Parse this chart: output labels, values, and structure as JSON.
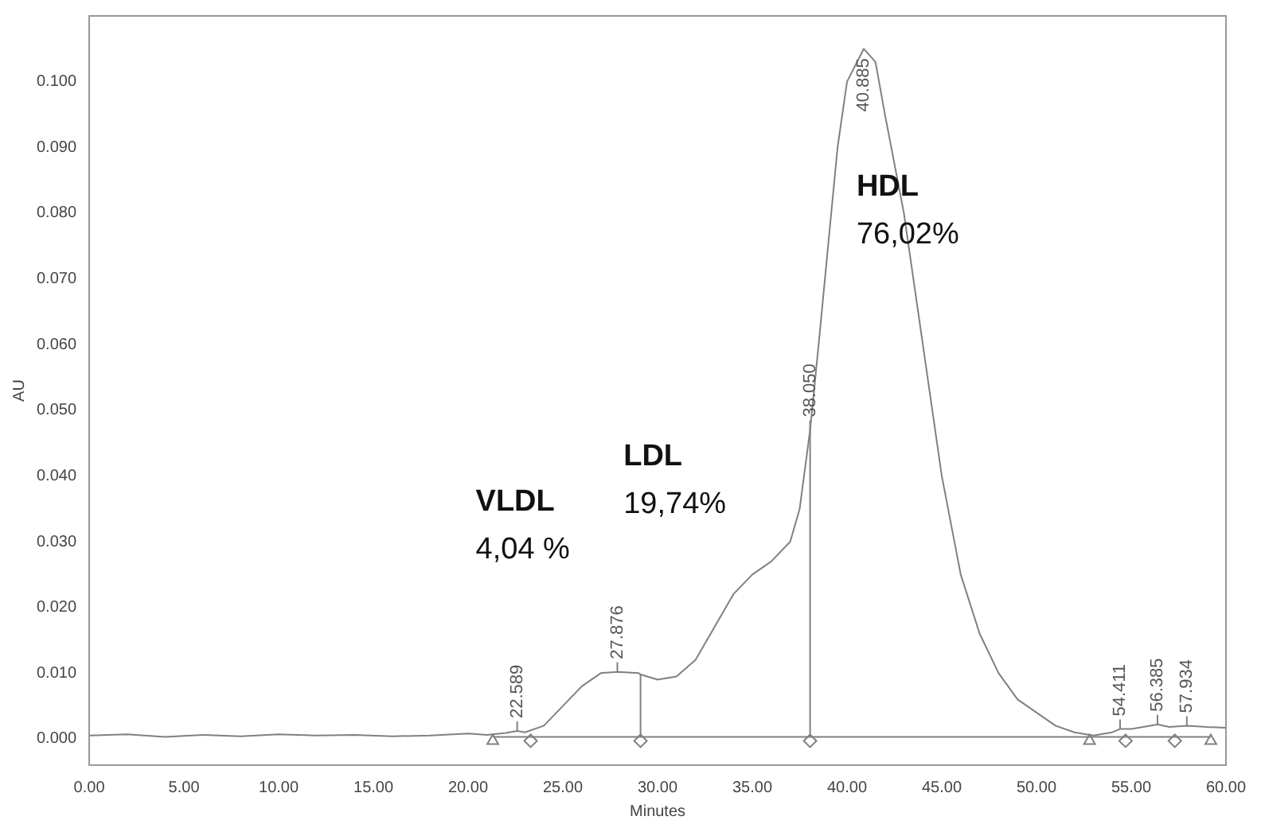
{
  "chart_data": {
    "type": "line",
    "xlabel": "Minutes",
    "ylabel": "AU",
    "xlim": [
      0,
      60
    ],
    "ylim": [
      -0.004,
      0.11
    ],
    "xticks": [
      {
        "value": 0,
        "label": "0.00"
      },
      {
        "value": 5,
        "label": "5.00"
      },
      {
        "value": 10,
        "label": "10.00"
      },
      {
        "value": 15,
        "label": "15.00"
      },
      {
        "value": 20,
        "label": "20.00"
      },
      {
        "value": 25,
        "label": "25.00"
      },
      {
        "value": 30,
        "label": "30.00"
      },
      {
        "value": 35,
        "label": "35.00"
      },
      {
        "value": 40,
        "label": "40.00"
      },
      {
        "value": 45,
        "label": "45.00"
      },
      {
        "value": 50,
        "label": "50.00"
      },
      {
        "value": 55,
        "label": "55.00"
      },
      {
        "value": 60,
        "label": "60.00"
      }
    ],
    "yticks": [
      {
        "value": 0,
        "label": "0.000"
      },
      {
        "value": 0.01,
        "label": "0.010"
      },
      {
        "value": 0.02,
        "label": "0.020"
      },
      {
        "value": 0.03,
        "label": "0.030"
      },
      {
        "value": 0.04,
        "label": "0.040"
      },
      {
        "value": 0.05,
        "label": "0.050"
      },
      {
        "value": 0.06,
        "label": "0.060"
      },
      {
        "value": 0.07,
        "label": "0.070"
      },
      {
        "value": 0.08,
        "label": "0.080"
      },
      {
        "value": 0.09,
        "label": "0.090"
      },
      {
        "value": 0.1,
        "label": "0.100"
      }
    ],
    "grid": false,
    "legend": false,
    "marker": "none",
    "line_style": "solid",
    "series": [
      {
        "color": "#808080",
        "x": [
          0,
          2,
          4,
          6,
          8,
          10,
          12,
          14,
          16,
          18,
          20,
          21,
          22,
          22.589,
          23,
          24,
          25,
          26,
          27,
          27.876,
          29,
          29.1,
          30,
          31,
          32,
          33,
          34,
          35,
          36,
          37,
          37.5,
          38.05,
          38.5,
          39,
          39.5,
          40,
          40.885,
          41.5,
          42,
          43,
          44,
          45,
          46,
          47,
          48,
          49,
          50,
          51,
          52,
          53,
          54,
          54.411,
          55,
          56,
          56.385,
          57,
          57.934,
          59,
          60
        ],
        "values": [
          0.0005,
          0.0007,
          0.0003,
          0.0006,
          0.0004,
          0.0007,
          0.0005,
          0.0006,
          0.0004,
          0.0005,
          0.0008,
          0.0006,
          0.0009,
          0.0012,
          0.001,
          0.002,
          0.005,
          0.008,
          0.01,
          0.0102,
          0.01,
          0.0098,
          0.009,
          0.0095,
          0.012,
          0.017,
          0.022,
          0.025,
          0.027,
          0.03,
          0.035,
          0.047,
          0.06,
          0.075,
          0.09,
          0.1,
          0.105,
          0.103,
          0.095,
          0.08,
          0.06,
          0.04,
          0.025,
          0.016,
          0.01,
          0.006,
          0.004,
          0.002,
          0.001,
          0.0005,
          0.001,
          0.0015,
          0.0015,
          0.002,
          0.0022,
          0.0018,
          0.002,
          0.0018,
          0.0017
        ]
      },
      {
        "color": "#808080",
        "x": [
          21.3,
          29.1,
          29.1,
          29.1,
          38.05,
          38.05,
          38.05,
          59.2
        ],
        "values": [
          0.0003,
          0.0003,
          0.0098,
          0.0003,
          0.0003,
          0.047,
          0.0003,
          0.0003
        ]
      },
      {
        "type": "scatter",
        "color": "#808080",
        "marker": "triangle",
        "x": [
          21.3,
          52.8,
          59.2
        ],
        "values": [
          -0.0003,
          -0.0003,
          -0.0003
        ]
      },
      {
        "type": "scatter",
        "color": "#808080",
        "marker": "diamond",
        "x": [
          23.3,
          29.1,
          38.05,
          54.7,
          57.3
        ],
        "values": [
          -0.0003,
          -0.0003,
          -0.0003,
          -0.0003,
          -0.0003
        ]
      }
    ],
    "annotations": [
      {
        "text": "22.589",
        "x": 22.589,
        "y": 0.0012
      },
      {
        "text": "27.876",
        "x": 27.876,
        "y": 0.0102
      },
      {
        "text": "38.050",
        "x": 38.05,
        "y": 0.047
      },
      {
        "text": "40.885",
        "x": 40.885,
        "y": 0.105
      },
      {
        "text": "54.411",
        "x": 54.411,
        "y": 0.0015
      },
      {
        "text": "56.385",
        "x": 56.385,
        "y": 0.0022
      },
      {
        "text": "57.934",
        "x": 57.934,
        "y": 0.002
      },
      "VLDL\n4,04 %",
      "LDL\n19,74%",
      "HDL\n76,02%"
    ]
  }
}
